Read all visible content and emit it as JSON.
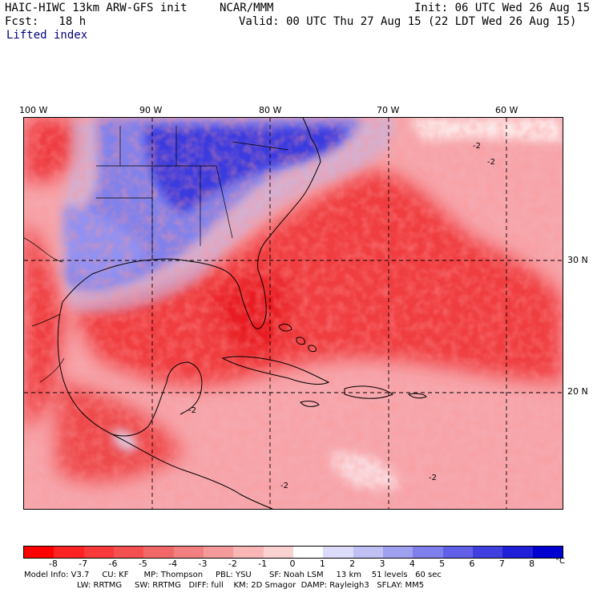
{
  "header": {
    "model_title": "HAIC-HIWC 13km ARW-GFS init",
    "org": "NCAR/MMM",
    "init": "Init: 06 UTC Wed 26 Aug 15",
    "fcst": "Fcst:   18 h",
    "valid": "Valid: 00 UTC Thu 27 Aug 15 (22 LDT Wed 26 Aug 15)",
    "field": "Lifted index"
  },
  "map": {
    "longitude_labels": [
      "100 W",
      "90 W",
      "80 W",
      "70 W",
      "60 W"
    ],
    "latitude_labels": [
      "30 N",
      "20 N"
    ],
    "contour_labels": [
      "-2",
      "-2",
      "-2",
      "-2",
      "-2"
    ]
  },
  "colorbar": {
    "ticks": [
      "-8",
      "-7",
      "-6",
      "-5",
      "-4",
      "-3",
      "-2",
      "-1",
      "0",
      "1",
      "2",
      "3",
      "4",
      "5",
      "6",
      "7",
      "8"
    ],
    "unit": "°C",
    "colors": [
      "#ff0000",
      "#ff2222",
      "#f83a3a",
      "#f55050",
      "#f26868",
      "#f28080",
      "#f49a9a",
      "#f8b6b6",
      "#fbd2d2",
      "#ffffff",
      "#dcdcfa",
      "#c0c0f4",
      "#a0a0f0",
      "#8080ec",
      "#6060e8",
      "#4040e0",
      "#2020d8",
      "#0000d0"
    ]
  },
  "model_info": {
    "line1": "Model Info: V3.7     CU: KF      MP: Thompson     PBL: YSU       SF: Noah LSM     13 km    51 levels   60 sec",
    "line2": "LW: RRTMG     SW: RRTMG   DIFF: full    KM: 2D Smagor  DAMP: Rayleigh3   SFLAY: MM5"
  }
}
